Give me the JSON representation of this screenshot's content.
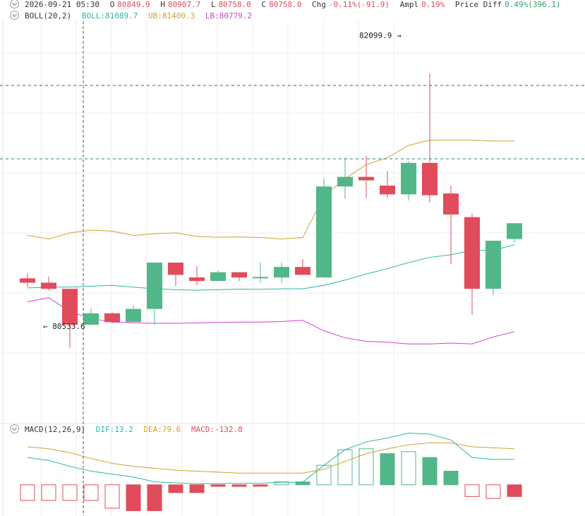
{
  "header": {
    "datetime": "2026-09-21 05:30",
    "open_label": "O",
    "open": "80849.9",
    "high_label": "H",
    "high": "80907.7",
    "low_label": "L",
    "low": "80758.0",
    "close_label": "C",
    "close": "80758.0",
    "chg_label": "Chg",
    "chg": "-0.11%(-91.9)",
    "ampl_label": "Ampl",
    "ampl": "0.19%",
    "pdiff_label": "Price Diff",
    "pdiff": "0.49%(396.1)"
  },
  "boll": {
    "label": "BOLL(20,2)",
    "mid_text": "BOLL:81089.7",
    "ub_text": "UB:81400.3",
    "lb_text": "LB:80779.2"
  },
  "macd": {
    "label": "MACD(12,26,9)",
    "dif_text": "DIF:13.2",
    "dea_text": "DEA:79.6",
    "macd_text": "MACD:-132.8"
  },
  "annotations": {
    "high_marker": "82099.9 →",
    "low_marker": "← 80533.6"
  },
  "colors": {
    "up": "#52b788",
    "down": "#e04c5b",
    "boll_mid": "#27b7a6",
    "boll_ub": "#d1a12c",
    "boll_lb": "#d43fd6",
    "grid": "#eeeeee"
  },
  "chart_data": [
    {
      "type": "candlestick",
      "name": "price",
      "candles": [
        {
          "o": 80930,
          "h": 80960,
          "l": 80880,
          "c": 80905
        },
        {
          "o": 80905,
          "h": 80940,
          "l": 80860,
          "c": 80870
        },
        {
          "o": 80870,
          "h": 80870,
          "l": 80533.6,
          "c": 80665
        },
        {
          "o": 80665,
          "h": 80760,
          "l": 80665,
          "c": 80730
        },
        {
          "o": 80730,
          "h": 80735,
          "l": 80672,
          "c": 80680
        },
        {
          "o": 80680,
          "h": 80775,
          "l": 80680,
          "c": 80755
        },
        {
          "o": 80755,
          "h": 81020,
          "l": 80665,
          "c": 81020
        },
        {
          "o": 81020,
          "h": 81020,
          "l": 80885,
          "c": 80950
        },
        {
          "o": 80935,
          "h": 81000,
          "l": 80890,
          "c": 80915
        },
        {
          "o": 80915,
          "h": 80975,
          "l": 80915,
          "c": 80965
        },
        {
          "o": 80965,
          "h": 80965,
          "l": 80915,
          "c": 80935
        },
        {
          "o": 80935,
          "h": 81020,
          "l": 80905,
          "c": 80938
        },
        {
          "o": 80935,
          "h": 81020,
          "l": 80905,
          "c": 80995
        },
        {
          "o": 80995,
          "h": 81040,
          "l": 80950,
          "c": 80950
        },
        {
          "o": 80935,
          "h": 81500,
          "l": 80935,
          "c": 81455
        },
        {
          "o": 81455,
          "h": 81620,
          "l": 81385,
          "c": 81510
        },
        {
          "o": 81510,
          "h": 81630,
          "l": 81390,
          "c": 81490
        },
        {
          "o": 81460,
          "h": 81545,
          "l": 81390,
          "c": 81410
        },
        {
          "o": 81410,
          "h": 81600,
          "l": 81375,
          "c": 81590
        },
        {
          "o": 81590,
          "h": 82099.9,
          "l": 81365,
          "c": 81405
        },
        {
          "o": 81415,
          "h": 81460,
          "l": 81010,
          "c": 81295
        },
        {
          "o": 81280,
          "h": 81300,
          "l": 80720,
          "c": 80870
        },
        {
          "o": 80870,
          "h": 81145,
          "l": 80835,
          "c": 81145
        },
        {
          "o": 81155,
          "h": 81240,
          "l": 81135,
          "c": 81245
        }
      ],
      "boll_mid": [
        80875,
        80880,
        80880,
        80885,
        80890,
        80880,
        80870,
        80865,
        80862,
        80865,
        80868,
        80867,
        80870,
        80870,
        80890,
        80920,
        80955,
        80985,
        81020,
        81050,
        81065,
        81090,
        81090,
        81122
      ],
      "boll_ub": [
        81176,
        81155,
        81190,
        81205,
        81200,
        81175,
        81185,
        81190,
        81170,
        81165,
        81167,
        81163,
        81155,
        81163,
        81400,
        81500,
        81580,
        81620,
        81690,
        81720,
        81720,
        81720,
        81715,
        81715
      ],
      "boll_lb": [
        80795,
        80820,
        80740,
        80700,
        80680,
        80675,
        80673,
        80673,
        80675,
        80678,
        80680,
        80680,
        80683,
        80690,
        80630,
        80590,
        80570,
        80565,
        80555,
        80555,
        80560,
        80555,
        80595,
        80625
      ],
      "ylim": [
        80100,
        82400
      ]
    },
    {
      "type": "macd",
      "name": "MACD(12,26,9)",
      "histogram": [
        -80,
        -80,
        -80,
        -80,
        -120,
        -132.8,
        -132.8,
        -40,
        -40,
        -8,
        -8,
        -6,
        15,
        15,
        100,
        180,
        185,
        160,
        170,
        140,
        70,
        -60,
        -70,
        -60
      ],
      "hist_hollow": [
        true,
        true,
        true,
        true,
        true,
        false,
        false,
        false,
        false,
        false,
        false,
        false,
        true,
        false,
        true,
        true,
        true,
        false,
        true,
        false,
        false,
        true,
        true,
        false
      ],
      "dif": [
        140,
        125,
        95,
        70,
        55,
        40,
        15,
        10,
        5,
        6,
        8,
        8,
        13.2,
        13.2,
        100,
        180,
        220,
        240,
        265,
        260,
        230,
        140,
        130,
        130
      ],
      "dea": [
        195,
        185,
        165,
        135,
        110,
        95,
        85,
        75,
        70,
        65,
        60,
        60,
        60,
        60,
        80,
        120,
        160,
        185,
        205,
        215,
        215,
        195,
        190,
        185
      ],
      "ylim": [
        -160,
        260
      ]
    }
  ]
}
